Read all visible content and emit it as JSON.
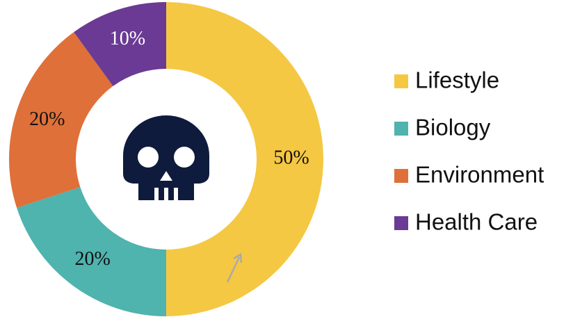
{
  "chart_data": {
    "type": "pie",
    "categories": [
      "Lifestyle",
      "Biology",
      "Environment",
      "Health Care"
    ],
    "values": [
      50,
      20,
      20,
      10
    ],
    "value_labels": [
      "50%",
      "20%",
      "20%",
      "10%"
    ],
    "colors": [
      "#f5c843",
      "#4fb3ae",
      "#df7039",
      "#6a3a94"
    ],
    "legend": "right"
  }
}
